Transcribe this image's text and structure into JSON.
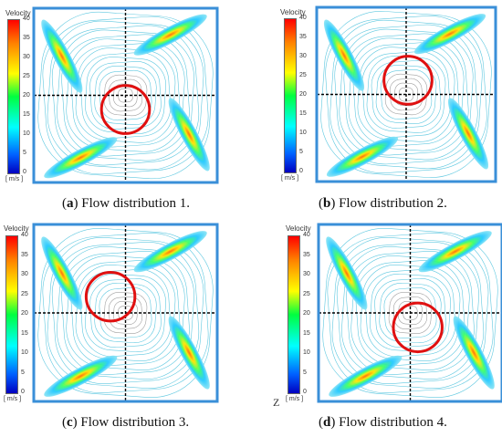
{
  "colorbar": {
    "title": "Velocity",
    "ticks": [
      "40",
      "35",
      "30",
      "25",
      "20",
      "15",
      "10",
      "5",
      "0"
    ],
    "unit": "[ m/s ]"
  },
  "panels": [
    {
      "letter": "a",
      "caption": " Flow distribution 1.",
      "circle_cx": 0.5,
      "circle_cy": 0.58
    },
    {
      "letter": "b",
      "caption": " Flow distribution 2.",
      "circle_cx": 0.51,
      "circle_cy": 0.42
    },
    {
      "letter": "c",
      "caption": " Flow distribution 3.",
      "circle_cx": 0.42,
      "circle_cy": 0.41
    },
    {
      "letter": "d",
      "caption": " Flow distribution 4.",
      "circle_cx": 0.54,
      "circle_cy": 0.58
    }
  ],
  "zlabel": "Z",
  "colors": {
    "contour": "#5fc8e0",
    "frame": "#3a8fd8",
    "circle": "#e01010",
    "core": "#a0a0a0"
  }
}
